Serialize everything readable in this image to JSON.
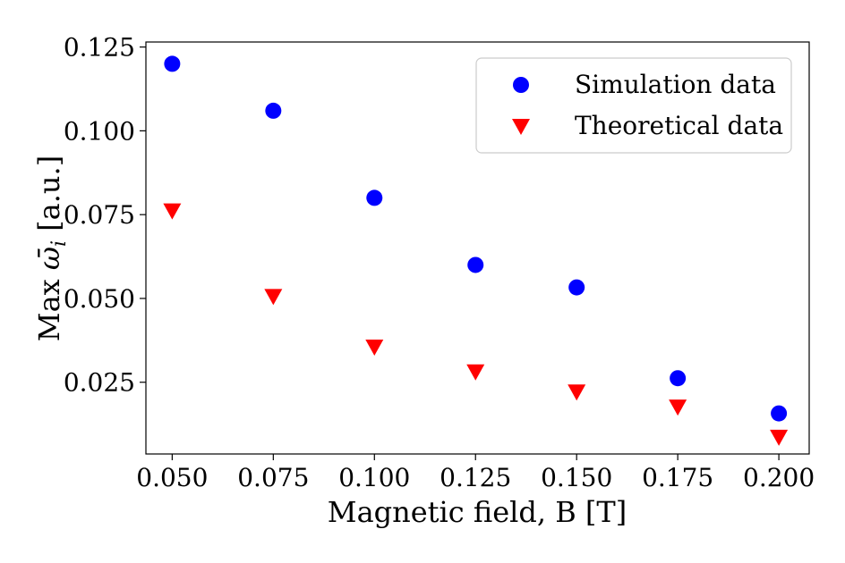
{
  "chart_data": {
    "type": "scatter",
    "title": "",
    "xlabel": "Magnetic field, B [T]",
    "ylabel_prefix": "Max ",
    "ylabel_symbol": "ω̄",
    "ylabel_subscript": "i",
    "ylabel_suffix": " [a.u.]",
    "xlim": [
      0.0435,
      0.2075
    ],
    "ylim": [
      0.0036,
      0.1265
    ],
    "xticks": [
      0.05,
      0.075,
      0.1,
      0.125,
      0.15,
      0.175,
      0.2
    ],
    "xtick_labels": [
      "0.050",
      "0.075",
      "0.100",
      "0.125",
      "0.150",
      "0.175",
      "0.200"
    ],
    "yticks": [
      0.025,
      0.05,
      0.075,
      0.1,
      0.125
    ],
    "ytick_labels": [
      "0.025",
      "0.050",
      "0.075",
      "0.100",
      "0.125"
    ],
    "grid": false,
    "legend_position": "top-right",
    "series": [
      {
        "name": "Simulation data",
        "marker": "circle",
        "color": "#0000ff",
        "points": [
          [
            0.05,
            0.12
          ],
          [
            0.075,
            0.106
          ],
          [
            0.1,
            0.08
          ],
          [
            0.125,
            0.06
          ],
          [
            0.15,
            0.0533
          ],
          [
            0.175,
            0.0262
          ],
          [
            0.2,
            0.0157
          ]
        ]
      },
      {
        "name": "Theoretical data",
        "marker": "triangle-down",
        "color": "#ff0000",
        "points": [
          [
            0.05,
            0.0762
          ],
          [
            0.075,
            0.0507
          ],
          [
            0.1,
            0.0356
          ],
          [
            0.125,
            0.0282
          ],
          [
            0.15,
            0.0222
          ],
          [
            0.175,
            0.0177
          ],
          [
            0.2,
            0.0087
          ]
        ]
      }
    ]
  }
}
